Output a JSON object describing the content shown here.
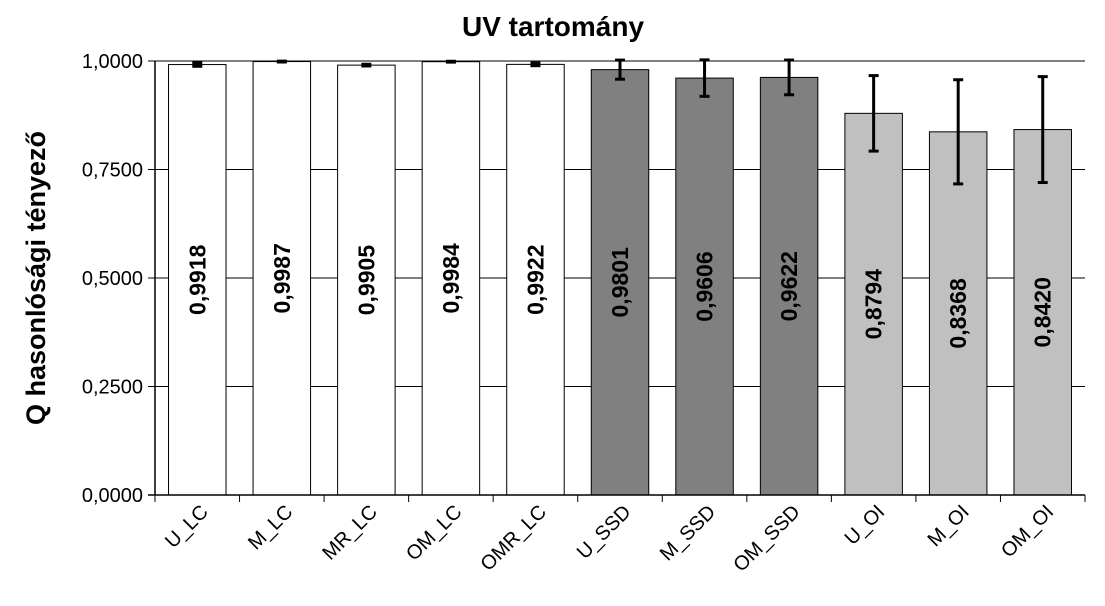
{
  "chart_data": {
    "type": "bar",
    "title": "UV tartomány",
    "ylabel": "Q hasonlósági  tényező",
    "xlabel": "",
    "ylim": [
      0,
      1
    ],
    "yticks": [
      0,
      0.25,
      0.5,
      0.75,
      1
    ],
    "ytick_labels": [
      "0,0000",
      "0,2500",
      "0,5000",
      "0,7500",
      "1,0000"
    ],
    "grid": true,
    "categories": [
      "U_LC",
      "M_LC",
      "MR_LC",
      "OM_LC",
      "OMR_LC",
      "U_SSD",
      "M_SSD",
      "OM_SSD",
      "U_OI",
      "M_OI",
      "OM_OI"
    ],
    "values": [
      0.9918,
      0.9987,
      0.9905,
      0.9984,
      0.9922,
      0.9801,
      0.9606,
      0.9622,
      0.8794,
      0.8368,
      0.842
    ],
    "value_labels": [
      "0,9918",
      "0,9987",
      "0,9905",
      "0,9984",
      "0,9922",
      "0,9801",
      "0,9606",
      "0,9622",
      "0,8794",
      "0,8368",
      "0,8420"
    ],
    "error": [
      0.004,
      0.001,
      0.002,
      0.001,
      0.003,
      0.022,
      0.042,
      0.04,
      0.087,
      0.12,
      0.122
    ],
    "bar_colors": [
      "#ffffff",
      "#ffffff",
      "#ffffff",
      "#ffffff",
      "#ffffff",
      "#808080",
      "#808080",
      "#808080",
      "#c0c0c0",
      "#c0c0c0",
      "#c0c0c0"
    ]
  }
}
